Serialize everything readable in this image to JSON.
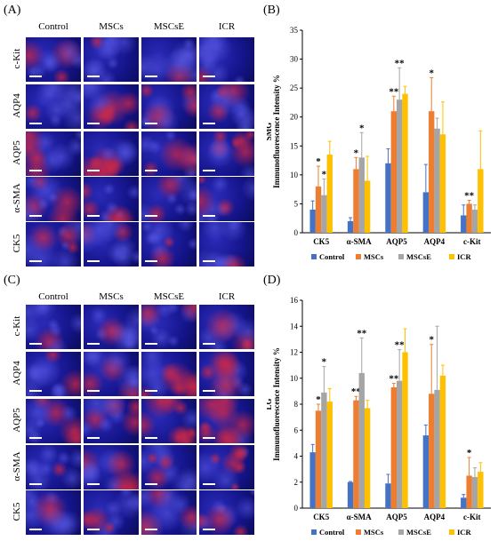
{
  "panels": {
    "A": {
      "letter": "(A)"
    },
    "B": {
      "letter": "(B)"
    },
    "C": {
      "letter": "(C)"
    },
    "D": {
      "letter": "(D)"
    }
  },
  "groups": [
    "Control",
    "MSCs",
    "MSCsE",
    "ICR"
  ],
  "markers_rows": [
    "c-Kit",
    "AQP4",
    "AQP5",
    "α-SMA",
    "CK5"
  ],
  "colors": {
    "Control": "#4472c4",
    "MSCs": "#ed7d31",
    "MSCsE": "#a5a5a5",
    "ICR": "#ffc000",
    "nucleus_blue": "#1a1aa0",
    "stain_red": "#c8283c"
  },
  "chart_data": [
    {
      "type": "bar",
      "panel": "B",
      "tissue": "SMG",
      "ylabel": "Immunofluorescence Intensity %",
      "categories": [
        "CK5",
        "α-SMA",
        "AQP5",
        "AQP4",
        "c-Kit"
      ],
      "ylim": [
        0,
        35
      ],
      "yticks": [
        0,
        5,
        10,
        15,
        20,
        25,
        30,
        35
      ],
      "series": [
        {
          "name": "Control",
          "values": [
            4,
            2,
            12,
            7,
            3
          ],
          "errors": [
            1.5,
            0.6,
            2.5,
            4.8,
            1.8
          ]
        },
        {
          "name": "MSCs",
          "values": [
            8,
            11,
            21,
            21,
            5
          ],
          "errors": [
            3.5,
            2.0,
            2.6,
            5.8,
            0.6
          ]
        },
        {
          "name": "MSCsE",
          "values": [
            6.5,
            13,
            23,
            18,
            4
          ],
          "errors": [
            2.8,
            4.3,
            5.5,
            1.8,
            0.8
          ]
        },
        {
          "name": "ICR",
          "values": [
            13.5,
            9,
            24,
            17,
            11
          ],
          "errors": [
            2.3,
            4.2,
            1.3,
            5.6,
            6.6
          ]
        }
      ],
      "significance": [
        [
          "",
          "*",
          "*",
          ""
        ],
        [
          "",
          "*",
          "*",
          ""
        ],
        [
          "",
          "**",
          "**",
          ""
        ],
        [
          "",
          "*",
          "",
          ""
        ],
        [
          "",
          "**",
          "",
          ""
        ]
      ]
    },
    {
      "type": "bar",
      "panel": "D",
      "tissue": "LG",
      "ylabel": "Immunofluorescence Intensity %",
      "categories": [
        "CK5",
        "α-SMA",
        "AQP5",
        "AQP4",
        "c-Kit"
      ],
      "ylim": [
        0,
        16
      ],
      "yticks": [
        0,
        2,
        4,
        6,
        8,
        10,
        12,
        14,
        16
      ],
      "series": [
        {
          "name": "Control",
          "values": [
            4.3,
            2.0,
            1.9,
            5.6,
            0.8
          ],
          "errors": [
            0.6,
            0.05,
            0.7,
            0.8,
            0.25
          ]
        },
        {
          "name": "MSCs",
          "values": [
            7.5,
            8.3,
            9.3,
            8.8,
            2.5
          ],
          "errors": [
            0.5,
            0.3,
            0.3,
            3.8,
            1.4
          ]
        },
        {
          "name": "MSCsE",
          "values": [
            8.9,
            10.4,
            9.8,
            9.1,
            2.4
          ],
          "errors": [
            2.0,
            2.7,
            2.4,
            4.9,
            0.7
          ]
        },
        {
          "name": "ICR",
          "values": [
            8.2,
            7.7,
            12.0,
            10.2,
            2.8
          ],
          "errors": [
            1.0,
            0.6,
            1.8,
            0.8,
            0.7
          ]
        }
      ],
      "significance": [
        [
          "",
          "*",
          "*",
          ""
        ],
        [
          "",
          "**",
          "**",
          ""
        ],
        [
          "",
          "**",
          "**",
          ""
        ],
        [
          "",
          "*",
          "",
          ""
        ],
        [
          "",
          "*",
          "",
          ""
        ]
      ]
    }
  ]
}
